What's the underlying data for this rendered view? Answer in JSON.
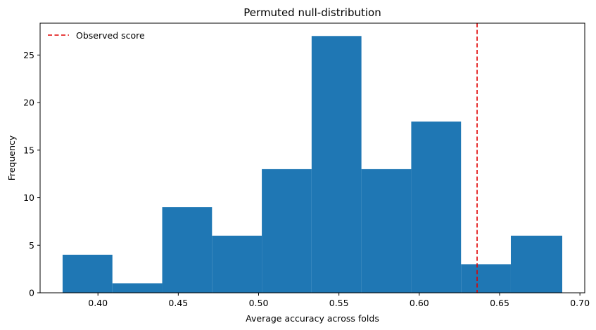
{
  "chart_data": {
    "type": "bar",
    "title": "Permuted null-distribution",
    "xlabel": "Average accuracy across folds",
    "ylabel": "Frequency",
    "bin_edges": [
      0.378,
      0.409,
      0.44,
      0.471,
      0.502,
      0.533,
      0.564,
      0.595,
      0.626,
      0.657,
      0.689
    ],
    "values": [
      4,
      1,
      9,
      6,
      13,
      27,
      13,
      18,
      3,
      6
    ],
    "xlim": [
      0.364,
      0.703
    ],
    "ylim": [
      0,
      28.35
    ],
    "x_ticks": [
      0.4,
      0.45,
      0.5,
      0.55,
      0.6,
      0.65,
      0.7
    ],
    "x_tick_labels": [
      "0.40",
      "0.45",
      "0.50",
      "0.55",
      "0.60",
      "0.65",
      "0.70"
    ],
    "y_ticks": [
      0,
      5,
      10,
      15,
      20,
      25
    ],
    "y_tick_labels": [
      "0",
      "5",
      "10",
      "15",
      "20",
      "25"
    ],
    "observed_score": 0.636,
    "legend": {
      "placement": "top-left",
      "entries": [
        {
          "label": "Observed score",
          "style": "dashed",
          "color": "#e00000"
        }
      ]
    },
    "bar_color": "#1f77b4",
    "grid": false
  }
}
